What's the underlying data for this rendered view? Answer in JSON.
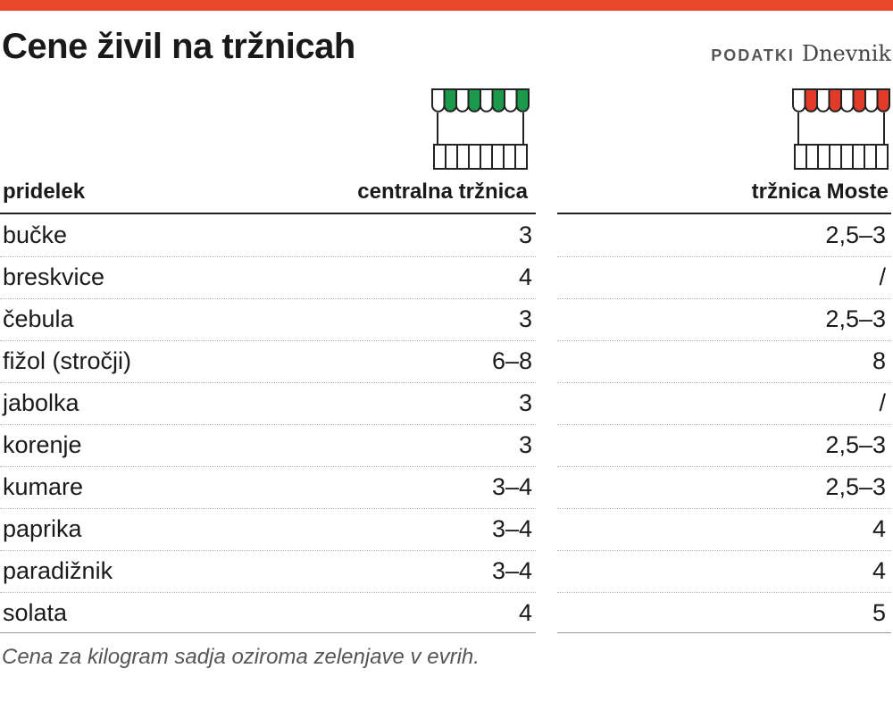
{
  "title": "Cene živil na tržnicah",
  "source": {
    "label": "PODATKI",
    "brand": "Dnevnik"
  },
  "colors": {
    "accent": "#e8472a",
    "market1": "#1a9a4a",
    "market2": "#e23b2a"
  },
  "table": {
    "headers": [
      "pridelek",
      "centralna tržnica",
      "tržnica Moste"
    ],
    "rows": [
      {
        "item": "bučke",
        "central": "3",
        "moste": "2,5–3"
      },
      {
        "item": "breskvice",
        "central": "4",
        "moste": "/"
      },
      {
        "item": "čebula",
        "central": "3",
        "moste": "2,5–3"
      },
      {
        "item": "fižol (stročji)",
        "central": "6–8",
        "moste": "8"
      },
      {
        "item": "jabolka",
        "central": "3",
        "moste": "/"
      },
      {
        "item": "korenje",
        "central": "3",
        "moste": "2,5–3"
      },
      {
        "item": "kumare",
        "central": "3–4",
        "moste": "2,5–3"
      },
      {
        "item": "paprika",
        "central": "3–4",
        "moste": "4"
      },
      {
        "item": "paradižnik",
        "central": "3–4",
        "moste": "4"
      },
      {
        "item": "solata",
        "central": "4",
        "moste": "5"
      }
    ]
  },
  "note": "Cena za kilogram sadja oziroma zelenjave v evrih."
}
